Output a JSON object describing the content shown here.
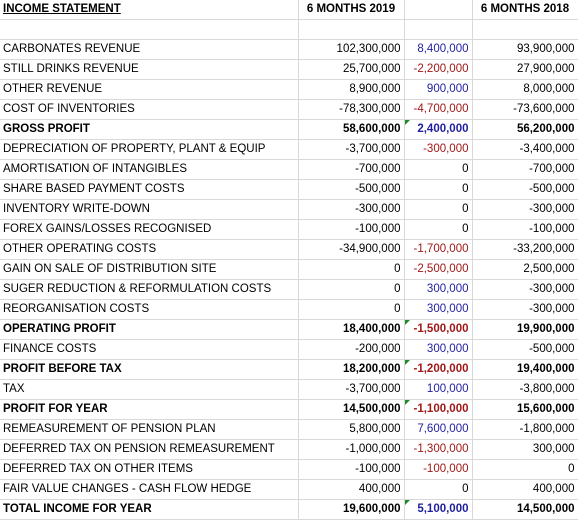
{
  "header": {
    "title": "INCOME STATEMENT",
    "col_2019": "6 MONTHS 2019",
    "col_diff": "",
    "col_2018": "6 MONTHS 2018"
  },
  "rows": [
    {
      "label": "CARBONATES REVENUE",
      "v2019": "102,300,000",
      "diff": "8,400,000",
      "diff_sign": "pos",
      "v2018": "93,900,000",
      "bold": false,
      "flag": false
    },
    {
      "label": "STILL DRINKS REVENUE",
      "v2019": "25,700,000",
      "diff": "-2,200,000",
      "diff_sign": "neg",
      "v2018": "27,900,000",
      "bold": false,
      "flag": false
    },
    {
      "label": "OTHER REVENUE",
      "v2019": "8,900,000",
      "diff": "900,000",
      "diff_sign": "pos",
      "v2018": "8,000,000",
      "bold": false,
      "flag": false
    },
    {
      "label": "COST OF INVENTORIES",
      "v2019": "-78,300,000",
      "diff": "-4,700,000",
      "diff_sign": "neg",
      "v2018": "-73,600,000",
      "bold": false,
      "flag": false
    },
    {
      "label": "GROSS PROFIT",
      "v2019": "58,600,000",
      "diff": "2,400,000",
      "diff_sign": "pos",
      "v2018": "56,200,000",
      "bold": true,
      "flag": true
    },
    {
      "label": "DEPRECIATION OF PROPERTY, PLANT & EQUIP",
      "v2019": "-3,700,000",
      "diff": "-300,000",
      "diff_sign": "neg",
      "v2018": "-3,400,000",
      "bold": false,
      "flag": false
    },
    {
      "label": "AMORTISATION OF INTANGIBLES",
      "v2019": "-700,000",
      "diff": "0",
      "diff_sign": "zero",
      "v2018": "-700,000",
      "bold": false,
      "flag": false
    },
    {
      "label": "SHARE BASED PAYMENT COSTS",
      "v2019": "-500,000",
      "diff": "0",
      "diff_sign": "zero",
      "v2018": "-500,000",
      "bold": false,
      "flag": false
    },
    {
      "label": "INVENTORY WRITE-DOWN",
      "v2019": "-300,000",
      "diff": "0",
      "diff_sign": "zero",
      "v2018": "-300,000",
      "bold": false,
      "flag": false
    },
    {
      "label": "FOREX GAINS/LOSSES RECOGNISED",
      "v2019": "-100,000",
      "diff": "0",
      "diff_sign": "zero",
      "v2018": "-100,000",
      "bold": false,
      "flag": false
    },
    {
      "label": "OTHER OPERATING COSTS",
      "v2019": "-34,900,000",
      "diff": "-1,700,000",
      "diff_sign": "neg",
      "v2018": "-33,200,000",
      "bold": false,
      "flag": false
    },
    {
      "label": "GAIN ON SALE OF DISTRIBUTION SITE",
      "v2019": "0",
      "diff": "-2,500,000",
      "diff_sign": "neg",
      "v2018": "2,500,000",
      "bold": false,
      "flag": false
    },
    {
      "label": "SUGER REDUCTION & REFORMULATION COSTS",
      "v2019": "0",
      "diff": "300,000",
      "diff_sign": "pos",
      "v2018": "-300,000",
      "bold": false,
      "flag": false
    },
    {
      "label": "REORGANISATION COSTS",
      "v2019": "0",
      "diff": "300,000",
      "diff_sign": "pos",
      "v2018": "-300,000",
      "bold": false,
      "flag": false
    },
    {
      "label": "OPERATING PROFIT",
      "v2019": "18,400,000",
      "diff": "-1,500,000",
      "diff_sign": "neg",
      "v2018": "19,900,000",
      "bold": true,
      "flag": true
    },
    {
      "label": "FINANCE COSTS",
      "v2019": "-200,000",
      "diff": "300,000",
      "diff_sign": "pos",
      "v2018": "-500,000",
      "bold": false,
      "flag": false
    },
    {
      "label": "PROFIT BEFORE TAX",
      "v2019": "18,200,000",
      "diff": "-1,200,000",
      "diff_sign": "neg",
      "v2018": "19,400,000",
      "bold": true,
      "flag": true
    },
    {
      "label": "TAX",
      "v2019": "-3,700,000",
      "diff": "100,000",
      "diff_sign": "pos",
      "v2018": "-3,800,000",
      "bold": false,
      "flag": false
    },
    {
      "label": "PROFIT FOR YEAR",
      "v2019": "14,500,000",
      "diff": "-1,100,000",
      "diff_sign": "neg",
      "v2018": "15,600,000",
      "bold": true,
      "flag": true
    },
    {
      "label": "REMEASUREMENT OF PENSION PLAN",
      "v2019": "5,800,000",
      "diff": "7,600,000",
      "diff_sign": "pos",
      "v2018": "-1,800,000",
      "bold": false,
      "flag": false
    },
    {
      "label": "DEFERRED TAX ON PENSION REMEASUREMENT",
      "v2019": "-1,000,000",
      "diff": "-1,300,000",
      "diff_sign": "neg",
      "v2018": "300,000",
      "bold": false,
      "flag": false
    },
    {
      "label": "DEFERRED TAX ON OTHER ITEMS",
      "v2019": "-100,000",
      "diff": "-100,000",
      "diff_sign": "neg",
      "v2018": "0",
      "bold": false,
      "flag": false
    },
    {
      "label": "FAIR VALUE CHANGES - CASH FLOW HEDGE",
      "v2019": "400,000",
      "diff": "0",
      "diff_sign": "zero",
      "v2018": "400,000",
      "bold": false,
      "flag": false
    },
    {
      "label": "TOTAL INCOME FOR YEAR",
      "v2019": "19,600,000",
      "diff": "5,100,000",
      "diff_sign": "pos",
      "v2018": "14,500,000",
      "bold": true,
      "flag": true
    }
  ],
  "colors": {
    "positive_diff": "#1f1f9e",
    "negative_diff": "#a01818",
    "flag": "#1f8a2c",
    "gridline": "#d9d9d9"
  }
}
